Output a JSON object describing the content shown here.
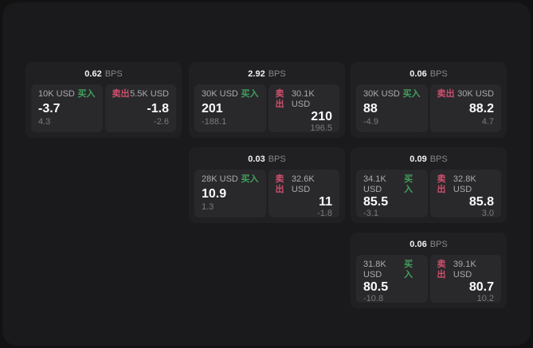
{
  "labels": {
    "buy": "买入",
    "sell": "卖出",
    "bps_suffix": "BPS"
  },
  "colors": {
    "buy_green": "#41a05c",
    "sell_red": "#d04f6c",
    "backdrop": "#121213",
    "container_bg": "#1a1a1c",
    "card_bg": "#202022",
    "panel_bg": "#29292c"
  },
  "cards": [
    {
      "bps_value": "0.62",
      "buy": {
        "amount": "10K USD",
        "value": "-3.7",
        "sub_value": "4.3"
      },
      "sell": {
        "amount": "5.5K USD",
        "value": "-1.8",
        "sub_value": "-2.6"
      }
    },
    {
      "bps_value": "2.92",
      "buy": {
        "amount": "30K USD",
        "value": "201",
        "sub_value": "-188.1"
      },
      "sell": {
        "amount": "30.1K USD",
        "value": "210",
        "sub_value": "196.5"
      }
    },
    {
      "bps_value": "0.06",
      "buy": {
        "amount": "30K USD",
        "value": "88",
        "sub_value": "-4.9"
      },
      "sell": {
        "amount": "30K USD",
        "value": "88.2",
        "sub_value": "4.7"
      }
    },
    {
      "bps_value": "0.03",
      "buy": {
        "amount": "28K USD",
        "value": "10.9",
        "sub_value": "1.3"
      },
      "sell": {
        "amount": "32.6K USD",
        "value": "11",
        "sub_value": "-1.8"
      }
    },
    {
      "bps_value": "0.09",
      "buy": {
        "amount": "34.1K USD",
        "value": "85.5",
        "sub_value": "-3.1"
      },
      "sell": {
        "amount": "32.8K USD",
        "value": "85.8",
        "sub_value": "3.0"
      }
    },
    {
      "bps_value": "0.06",
      "buy": {
        "amount": "31.8K USD",
        "value": "80.5",
        "sub_value": "-10.8"
      },
      "sell": {
        "amount": "39.1K USD",
        "value": "80.7",
        "sub_value": "10.2"
      }
    }
  ]
}
